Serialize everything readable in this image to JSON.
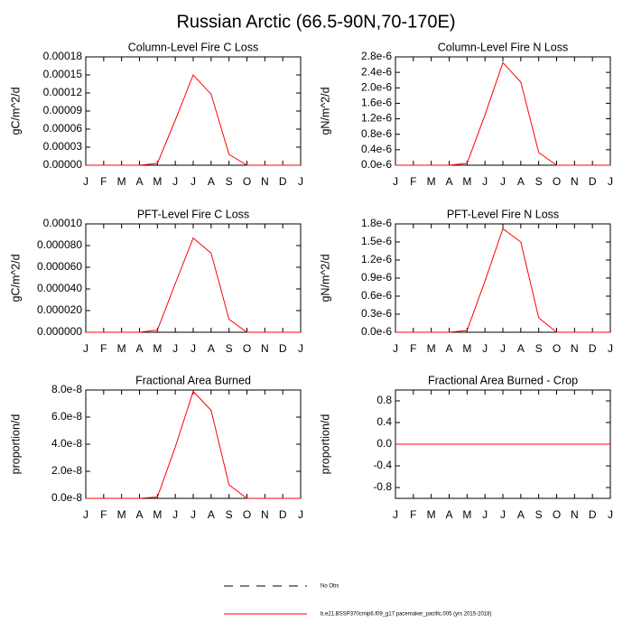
{
  "title": "Russian Arctic (66.5-90N,70-170E)",
  "legend": [
    {
      "name": "No Obs",
      "color": "#000000",
      "dash": true
    },
    {
      "name": "b.e21.BSSP370cmip6.f09_g17.pacemaker_pacific.005 (yrs 2015-2018)",
      "color": "#ff0000",
      "dash": false
    }
  ],
  "chart_data": [
    {
      "type": "line",
      "title": "Column-Level Fire C Loss",
      "y_label": "gC/m^2/d",
      "categories": [
        "J",
        "F",
        "M",
        "A",
        "M",
        "J",
        "J",
        "A",
        "S",
        "O",
        "N",
        "D",
        "J"
      ],
      "values": [
        0,
        0,
        0,
        0,
        3e-06,
        7.5e-05,
        0.00015,
        0.000118,
        1.8e-05,
        0,
        0,
        0,
        0
      ],
      "color": "#ff0000",
      "ylim": [
        0,
        0.00018
      ],
      "yticks": [
        {
          "value": 0,
          "label": "0.00000"
        },
        3e-05,
        6e-05,
        9e-05,
        0.00012,
        0.00015,
        0.00018
      ]
    },
    {
      "type": "line",
      "title": "Column-Level Fire N Loss",
      "y_label": "gN/m^2/d",
      "categories": [
        "J",
        "F",
        "M",
        "A",
        "M",
        "J",
        "J",
        "A",
        "S",
        "O",
        "N",
        "D",
        "J"
      ],
      "values": [
        0,
        0,
        0,
        0,
        5e-08,
        1.3e-06,
        2.65e-06,
        2.15e-06,
        3.3e-07,
        0,
        0,
        0,
        0
      ],
      "color": "#ff0000",
      "ylim": [
        0,
        2.8e-06
      ],
      "yticks": [
        {
          "value": 0,
          "label": "0.0e-6"
        },
        {
          "value": 4e-07,
          "label": "0.4e-6"
        },
        {
          "value": 8e-07,
          "label": "0.8e-6"
        },
        {
          "value": 1.2e-06,
          "label": "1.2e-6"
        },
        {
          "value": 1.6e-06,
          "label": "1.6e-6"
        },
        {
          "value": 2e-06,
          "label": "2.0e-6"
        },
        {
          "value": 2.4e-06,
          "label": "2.4e-6"
        },
        {
          "value": 2.8e-06,
          "label": "2.8e-6"
        }
      ]
    },
    {
      "type": "line",
      "title": "PFT-Level Fire C Loss",
      "y_label": "gC/m^2/d",
      "categories": [
        "J",
        "F",
        "M",
        "A",
        "M",
        "J",
        "J",
        "A",
        "S",
        "O",
        "N",
        "D",
        "J"
      ],
      "values": [
        0,
        0,
        0,
        0,
        2e-06,
        4.5e-05,
        8.7e-05,
        7.3e-05,
        1.2e-05,
        0,
        0,
        0,
        0
      ],
      "color": "#ff0000",
      "ylim": [
        0,
        0.0001
      ],
      "yticks": [
        {
          "value": 0,
          "label": "0.000000"
        },
        {
          "value": 2e-05,
          "label": "0.000020"
        },
        {
          "value": 4e-05,
          "label": "0.000040"
        },
        {
          "value": 6e-05,
          "label": "0.000060"
        },
        {
          "value": 8e-05,
          "label": "0.000080"
        },
        {
          "value": 0.0001,
          "label": "0.00010"
        }
      ]
    },
    {
      "type": "line",
      "title": "PFT-Level Fire N Loss",
      "y_label": "gN/m^2/d",
      "categories": [
        "J",
        "F",
        "M",
        "A",
        "M",
        "J",
        "J",
        "A",
        "S",
        "O",
        "N",
        "D",
        "J"
      ],
      "values": [
        0,
        0,
        0,
        0,
        3e-08,
        8.5e-07,
        1.72e-06,
        1.5e-06,
        2.4e-07,
        0,
        0,
        0,
        0
      ],
      "color": "#ff0000",
      "ylim": [
        0,
        1.8e-06
      ],
      "yticks": [
        {
          "value": 0,
          "label": "0.0e-6"
        },
        {
          "value": 3e-07,
          "label": "0.3e-6"
        },
        {
          "value": 6e-07,
          "label": "0.6e-6"
        },
        {
          "value": 9e-07,
          "label": "0.9e-6"
        },
        {
          "value": 1.2e-06,
          "label": "1.2e-6"
        },
        {
          "value": 1.5e-06,
          "label": "1.5e-6"
        },
        {
          "value": 1.8e-06,
          "label": "1.8e-6"
        }
      ]
    },
    {
      "type": "line",
      "title": "Fractional Area Burned",
      "y_label": "proportion/d",
      "categories": [
        "J",
        "F",
        "M",
        "A",
        "M",
        "J",
        "J",
        "A",
        "S",
        "O",
        "N",
        "D",
        "J"
      ],
      "values": [
        0,
        0,
        0,
        0,
        1e-09,
        3.8e-08,
        7.9e-08,
        6.5e-08,
        1e-08,
        0,
        0,
        0,
        0
      ],
      "color": "#ff0000",
      "ylim": [
        0,
        8e-08
      ],
      "yticks": [
        {
          "value": 0,
          "label": "0.0e-8"
        },
        {
          "value": 2e-08,
          "label": "2.0e-8"
        },
        {
          "value": 4e-08,
          "label": "4.0e-8"
        },
        {
          "value": 6e-08,
          "label": "6.0e-8"
        },
        {
          "value": 8e-08,
          "label": "8.0e-8"
        }
      ]
    },
    {
      "type": "line",
      "title": "Fractional Area Burned - Crop",
      "y_label": "proportion/d",
      "categories": [
        "J",
        "F",
        "M",
        "A",
        "M",
        "J",
        "J",
        "A",
        "S",
        "O",
        "N",
        "D",
        "J"
      ],
      "values": [
        0,
        0,
        0,
        0,
        0,
        0,
        0,
        0,
        0,
        0,
        0,
        0,
        0
      ],
      "color": "#ff0000",
      "ylim": [
        -1,
        1
      ],
      "yticks": [
        -0.8,
        -0.4,
        {
          "value": 0,
          "label": "0.0"
        },
        0.4,
        0.8
      ]
    }
  ]
}
